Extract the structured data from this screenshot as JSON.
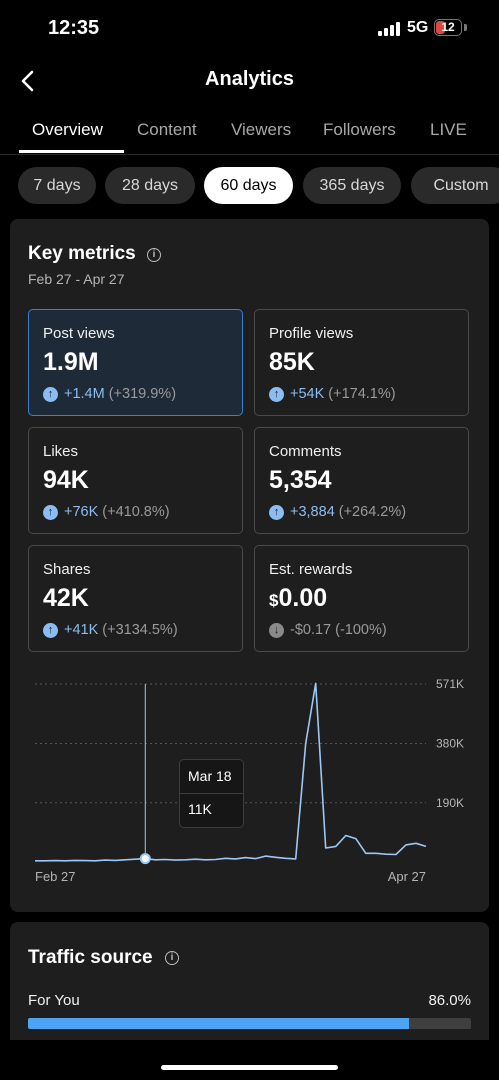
{
  "status_bar": {
    "time": "12:35",
    "network": "5G",
    "battery": "12"
  },
  "header": {
    "title": "Analytics"
  },
  "tabs": [
    {
      "label": "Overview",
      "active": true
    },
    {
      "label": "Content"
    },
    {
      "label": "Viewers"
    },
    {
      "label": "Followers"
    },
    {
      "label": "LIVE"
    }
  ],
  "ranges": [
    {
      "label": "7 days"
    },
    {
      "label": "28 days"
    },
    {
      "label": "60 days",
      "selected": true
    },
    {
      "label": "365 days"
    },
    {
      "label": "Custom"
    }
  ],
  "key_metrics": {
    "title": "Key metrics",
    "date_range": "Feb 27 - Apr 27",
    "metrics": [
      {
        "label": "Post views",
        "value": "1.9M",
        "delta": "+1.4M",
        "pct": "(+319.9%)",
        "direction": "up"
      },
      {
        "label": "Profile views",
        "value": "85K",
        "delta": "+54K",
        "pct": "(+174.1%)",
        "direction": "up"
      },
      {
        "label": "Likes",
        "value": "94K",
        "delta": "+76K",
        "pct": "(+410.8%)",
        "direction": "up"
      },
      {
        "label": "Comments",
        "value": "5,354",
        "delta": "+3,884",
        "pct": "(+264.2%)",
        "direction": "up"
      },
      {
        "label": "Shares",
        "value": "42K",
        "delta": "+41K",
        "pct": "(+3134.5%)",
        "direction": "up"
      },
      {
        "label": "Est. rewards",
        "currency": "$",
        "value": "0.00",
        "delta": "-$0.17",
        "pct": "(-100%)",
        "direction": "down"
      }
    ]
  },
  "chart_data": {
    "type": "line",
    "series": [
      {
        "color": "#9cc8f5",
        "values": [
          4000,
          4000,
          4500,
          4000,
          5000,
          4500,
          4000,
          6000,
          5000,
          7000,
          9000,
          11000,
          7000,
          8000,
          6000,
          7000,
          9000,
          7000,
          8000,
          12000,
          10000,
          14000,
          11000,
          19000,
          15000,
          12000,
          10000,
          380000,
          573000,
          45000,
          50000,
          85000,
          75000,
          28000,
          28000,
          25000,
          24000,
          55000,
          60000,
          50000
        ]
      }
    ],
    "x_tick_labels": [
      "Feb 27",
      "Apr 27"
    ],
    "y_tick_labels": [
      "190K",
      "380K",
      "571K"
    ],
    "y_ticks": [
      190000,
      380000,
      571000
    ],
    "ylim": [
      0,
      571000
    ],
    "highlight": {
      "index": 11,
      "date": "Mar 18",
      "value": "11K"
    }
  },
  "traffic_source": {
    "title": "Traffic source",
    "items": [
      {
        "label": "For You",
        "pct": "86.0%",
        "fraction": 0.86
      }
    ]
  }
}
